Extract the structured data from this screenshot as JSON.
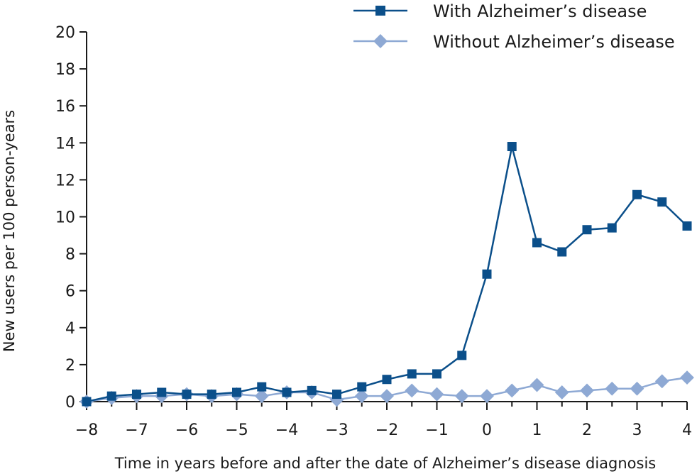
{
  "chart_data": {
    "type": "line",
    "title": "",
    "xlabel": "Time in years before and after the date of Alzheimer’s disease diagnosis",
    "ylabel": "New users per 100 person-years",
    "xlim": [
      -8,
      4
    ],
    "ylim": [
      0,
      20
    ],
    "x_ticks": [
      -8,
      -7,
      -6,
      -5,
      -4,
      -3,
      -2,
      -1,
      0,
      1,
      2,
      3,
      4
    ],
    "x_tick_labels": [
      "−8",
      "−7",
      "−6",
      "−5",
      "−4",
      "−3",
      "−2",
      "−1",
      "0",
      "1",
      "2",
      "3",
      "4"
    ],
    "y_ticks": [
      0,
      2,
      4,
      6,
      8,
      10,
      12,
      14,
      16,
      18,
      20
    ],
    "y_tick_labels": [
      "0",
      "2",
      "4",
      "6",
      "8",
      "10",
      "12",
      "14",
      "16",
      "18",
      "20"
    ],
    "grid": false,
    "legend_position": "top-right",
    "x": [
      -8,
      -7.5,
      -7,
      -6.5,
      -6,
      -5.5,
      -5,
      -4.5,
      -4,
      -3.5,
      -3,
      -2.5,
      -2,
      -1.5,
      -1,
      -0.5,
      0,
      0.5,
      1,
      1.5,
      2,
      2.5,
      3,
      3.5,
      4
    ],
    "series": [
      {
        "name": "With Alzheimer’s disease",
        "color": "#0b4f8a",
        "marker": "square",
        "values": [
          0,
          0.3,
          0.4,
          0.5,
          0.4,
          0.4,
          0.5,
          0.8,
          0.5,
          0.6,
          0.4,
          0.8,
          1.2,
          1.5,
          1.5,
          2.5,
          6.9,
          13.8,
          8.6,
          8.1,
          9.3,
          9.4,
          11.2,
          10.8,
          9.5
        ]
      },
      {
        "name": "Without Alzheimer’s disease",
        "color": "#8ea9d4",
        "marker": "diamond",
        "values": [
          0,
          0.2,
          0.3,
          0.3,
          0.4,
          0.3,
          0.4,
          0.3,
          0.5,
          0.5,
          0.1,
          0.3,
          0.3,
          0.6,
          0.4,
          0.3,
          0.3,
          0.6,
          0.9,
          0.5,
          0.6,
          0.7,
          0.7,
          1.1,
          1.3
        ]
      }
    ]
  }
}
